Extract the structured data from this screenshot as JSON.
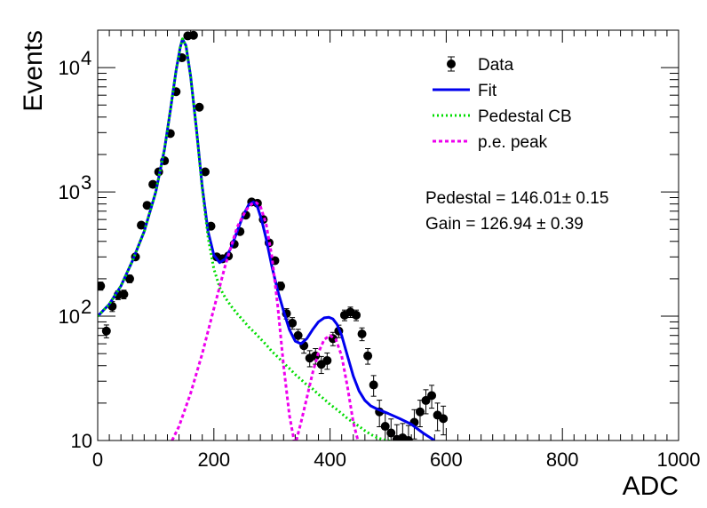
{
  "chart_data": {
    "type": "scatter",
    "xlabel": "ADC",
    "ylabel": "Events",
    "xlim": [
      0,
      1000
    ],
    "ylim": [
      10,
      20000
    ],
    "yscale": "log",
    "xticks": [
      "0",
      "200",
      "400",
      "600",
      "800",
      "1000"
    ],
    "yticks": [
      {
        "value": 10,
        "mantissa": "10",
        "exp": ""
      },
      {
        "value": 100,
        "mantissa": "10",
        "exp": "2"
      },
      {
        "value": 1000,
        "mantissa": "10",
        "exp": "3"
      },
      {
        "value": 10000,
        "mantissa": "10",
        "exp": "4"
      }
    ],
    "legend_position": "top-right",
    "legend": [
      {
        "label": "Data",
        "style": "marker",
        "color": "#000000"
      },
      {
        "label": "Fit",
        "style": "solid",
        "color": "#0000ee"
      },
      {
        "label": "Pedestal CB",
        "style": "dotted",
        "color": "#00dd00"
      },
      {
        "label": "p.e. peak",
        "style": "dashed",
        "color": "#ee00ee"
      }
    ],
    "annotations": [
      {
        "text": "Pedestal = 146.01± 0.15"
      },
      {
        "text": "Gain = 126.94 ± 0.39"
      }
    ],
    "series": [
      {
        "name": "Data",
        "style": "marker",
        "color": "#000000",
        "x": [
          5,
          15,
          25,
          35,
          45,
          55,
          65,
          75,
          85,
          95,
          105,
          115,
          125,
          135,
          145,
          155,
          165,
          175,
          185,
          195,
          205,
          215,
          225,
          235,
          245,
          255,
          265,
          275,
          285,
          295,
          305,
          315,
          325,
          335,
          345,
          355,
          365,
          375,
          385,
          395,
          405,
          415,
          425,
          435,
          445,
          455,
          465,
          475,
          485,
          495,
          505,
          515,
          525,
          535,
          545,
          555,
          565,
          575,
          585,
          595
        ],
        "y": [
          175,
          76,
          120,
          148,
          150,
          200,
          300,
          540,
          780,
          1150,
          1450,
          1780,
          2950,
          6400,
          12000,
          18000,
          18200,
          4800,
          1450,
          530,
          300,
          290,
          305,
          380,
          480,
          650,
          830,
          810,
          600,
          390,
          280,
          175,
          105,
          88,
          70,
          58,
          46,
          48,
          41,
          44,
          66,
          76,
          102,
          108,
          102,
          72,
          48,
          28,
          17,
          13,
          11.5,
          10.2,
          10.5,
          10,
          14,
          17,
          21,
          23,
          16,
          15
        ],
        "yerr": [
          13,
          9,
          11,
          12,
          12,
          14,
          17,
          23,
          28,
          34,
          38,
          42,
          54,
          80,
          110,
          134,
          135,
          69,
          38,
          23,
          17,
          17,
          17,
          19,
          22,
          25,
          29,
          28,
          24,
          20,
          17,
          13,
          10,
          9.4,
          8.4,
          7.6,
          6.8,
          6.9,
          6.4,
          6.6,
          8.1,
          8.7,
          10,
          10.4,
          10,
          8.5,
          6.9,
          5.3,
          4.1,
          3.6,
          3.4,
          3.2,
          3.2,
          3.2,
          3.7,
          4.1,
          4.6,
          4.8,
          4,
          3.9
        ]
      },
      {
        "name": "Fit",
        "style": "solid",
        "color": "#0000ee",
        "x": [
          0,
          20,
          40,
          60,
          80,
          100,
          115,
          125,
          135,
          142,
          146,
          152,
          160,
          170,
          180,
          190,
          200,
          210,
          220,
          230,
          240,
          250,
          260,
          268,
          275,
          282,
          290,
          300,
          310,
          320,
          330,
          340,
          350,
          360,
          370,
          380,
          390,
          398,
          405,
          412,
          420,
          430,
          440,
          450,
          460,
          470,
          480,
          500,
          520,
          540,
          560,
          580
        ],
        "y": [
          100,
          125,
          175,
          280,
          480,
          1000,
          2200,
          4500,
          9500,
          14500,
          17000,
          15000,
          8500,
          3200,
          1100,
          480,
          310,
          270,
          290,
          360,
          480,
          640,
          790,
          830,
          760,
          600,
          420,
          250,
          160,
          110,
          78,
          63,
          60,
          66,
          78,
          90,
          97,
          98,
          95,
          86,
          70,
          48,
          33,
          25,
          21,
          19,
          18,
          16.5,
          15,
          13.5,
          11.5,
          10
        ]
      },
      {
        "name": "Pedestal CB",
        "style": "dotted",
        "color": "#00dd00",
        "x": [
          0,
          20,
          40,
          60,
          80,
          100,
          115,
          125,
          135,
          142,
          146,
          152,
          160,
          170,
          180,
          190,
          200,
          210,
          220,
          230,
          240,
          250,
          260,
          270,
          280,
          290,
          300,
          310,
          320,
          330,
          340,
          350,
          360,
          370,
          380,
          390,
          400,
          410,
          420,
          430,
          440,
          450,
          460,
          470,
          480,
          490,
          500,
          510,
          520
        ],
        "y": [
          100,
          125,
          175,
          280,
          480,
          1000,
          2200,
          4500,
          9500,
          14500,
          17000,
          15000,
          8500,
          3200,
          1050,
          430,
          240,
          170,
          140,
          120,
          105,
          93,
          82,
          74,
          66,
          59,
          52,
          47,
          42,
          38,
          34,
          31,
          28,
          26,
          23.5,
          21.5,
          19.5,
          18,
          16.5,
          15,
          14,
          13,
          12,
          11.2,
          10.6,
          10.2,
          10,
          9.6,
          9.2
        ]
      },
      {
        "name": "p.e. peak",
        "style": "dashed",
        "color": "#ee00ee",
        "x": [
          128,
          140,
          160,
          180,
          200,
          220,
          240,
          255,
          265,
          273,
          280,
          290,
          300,
          310,
          320,
          330,
          338
        ],
        "y": [
          10,
          13,
          24,
          50,
          115,
          260,
          520,
          710,
          800,
          820,
          770,
          550,
          300,
          120,
          40,
          16,
          10
        ]
      },
      {
        "name": "p.e. peak",
        "style": "dashed",
        "color": "#ee00ee",
        "x": [
          342,
          350,
          360,
          370,
          380,
          390,
          400,
          410,
          420,
          430,
          440,
          448
        ],
        "y": [
          10,
          14,
          22,
          35,
          51,
          65,
          70,
          65,
          48,
          27,
          14,
          10
        ]
      }
    ]
  }
}
